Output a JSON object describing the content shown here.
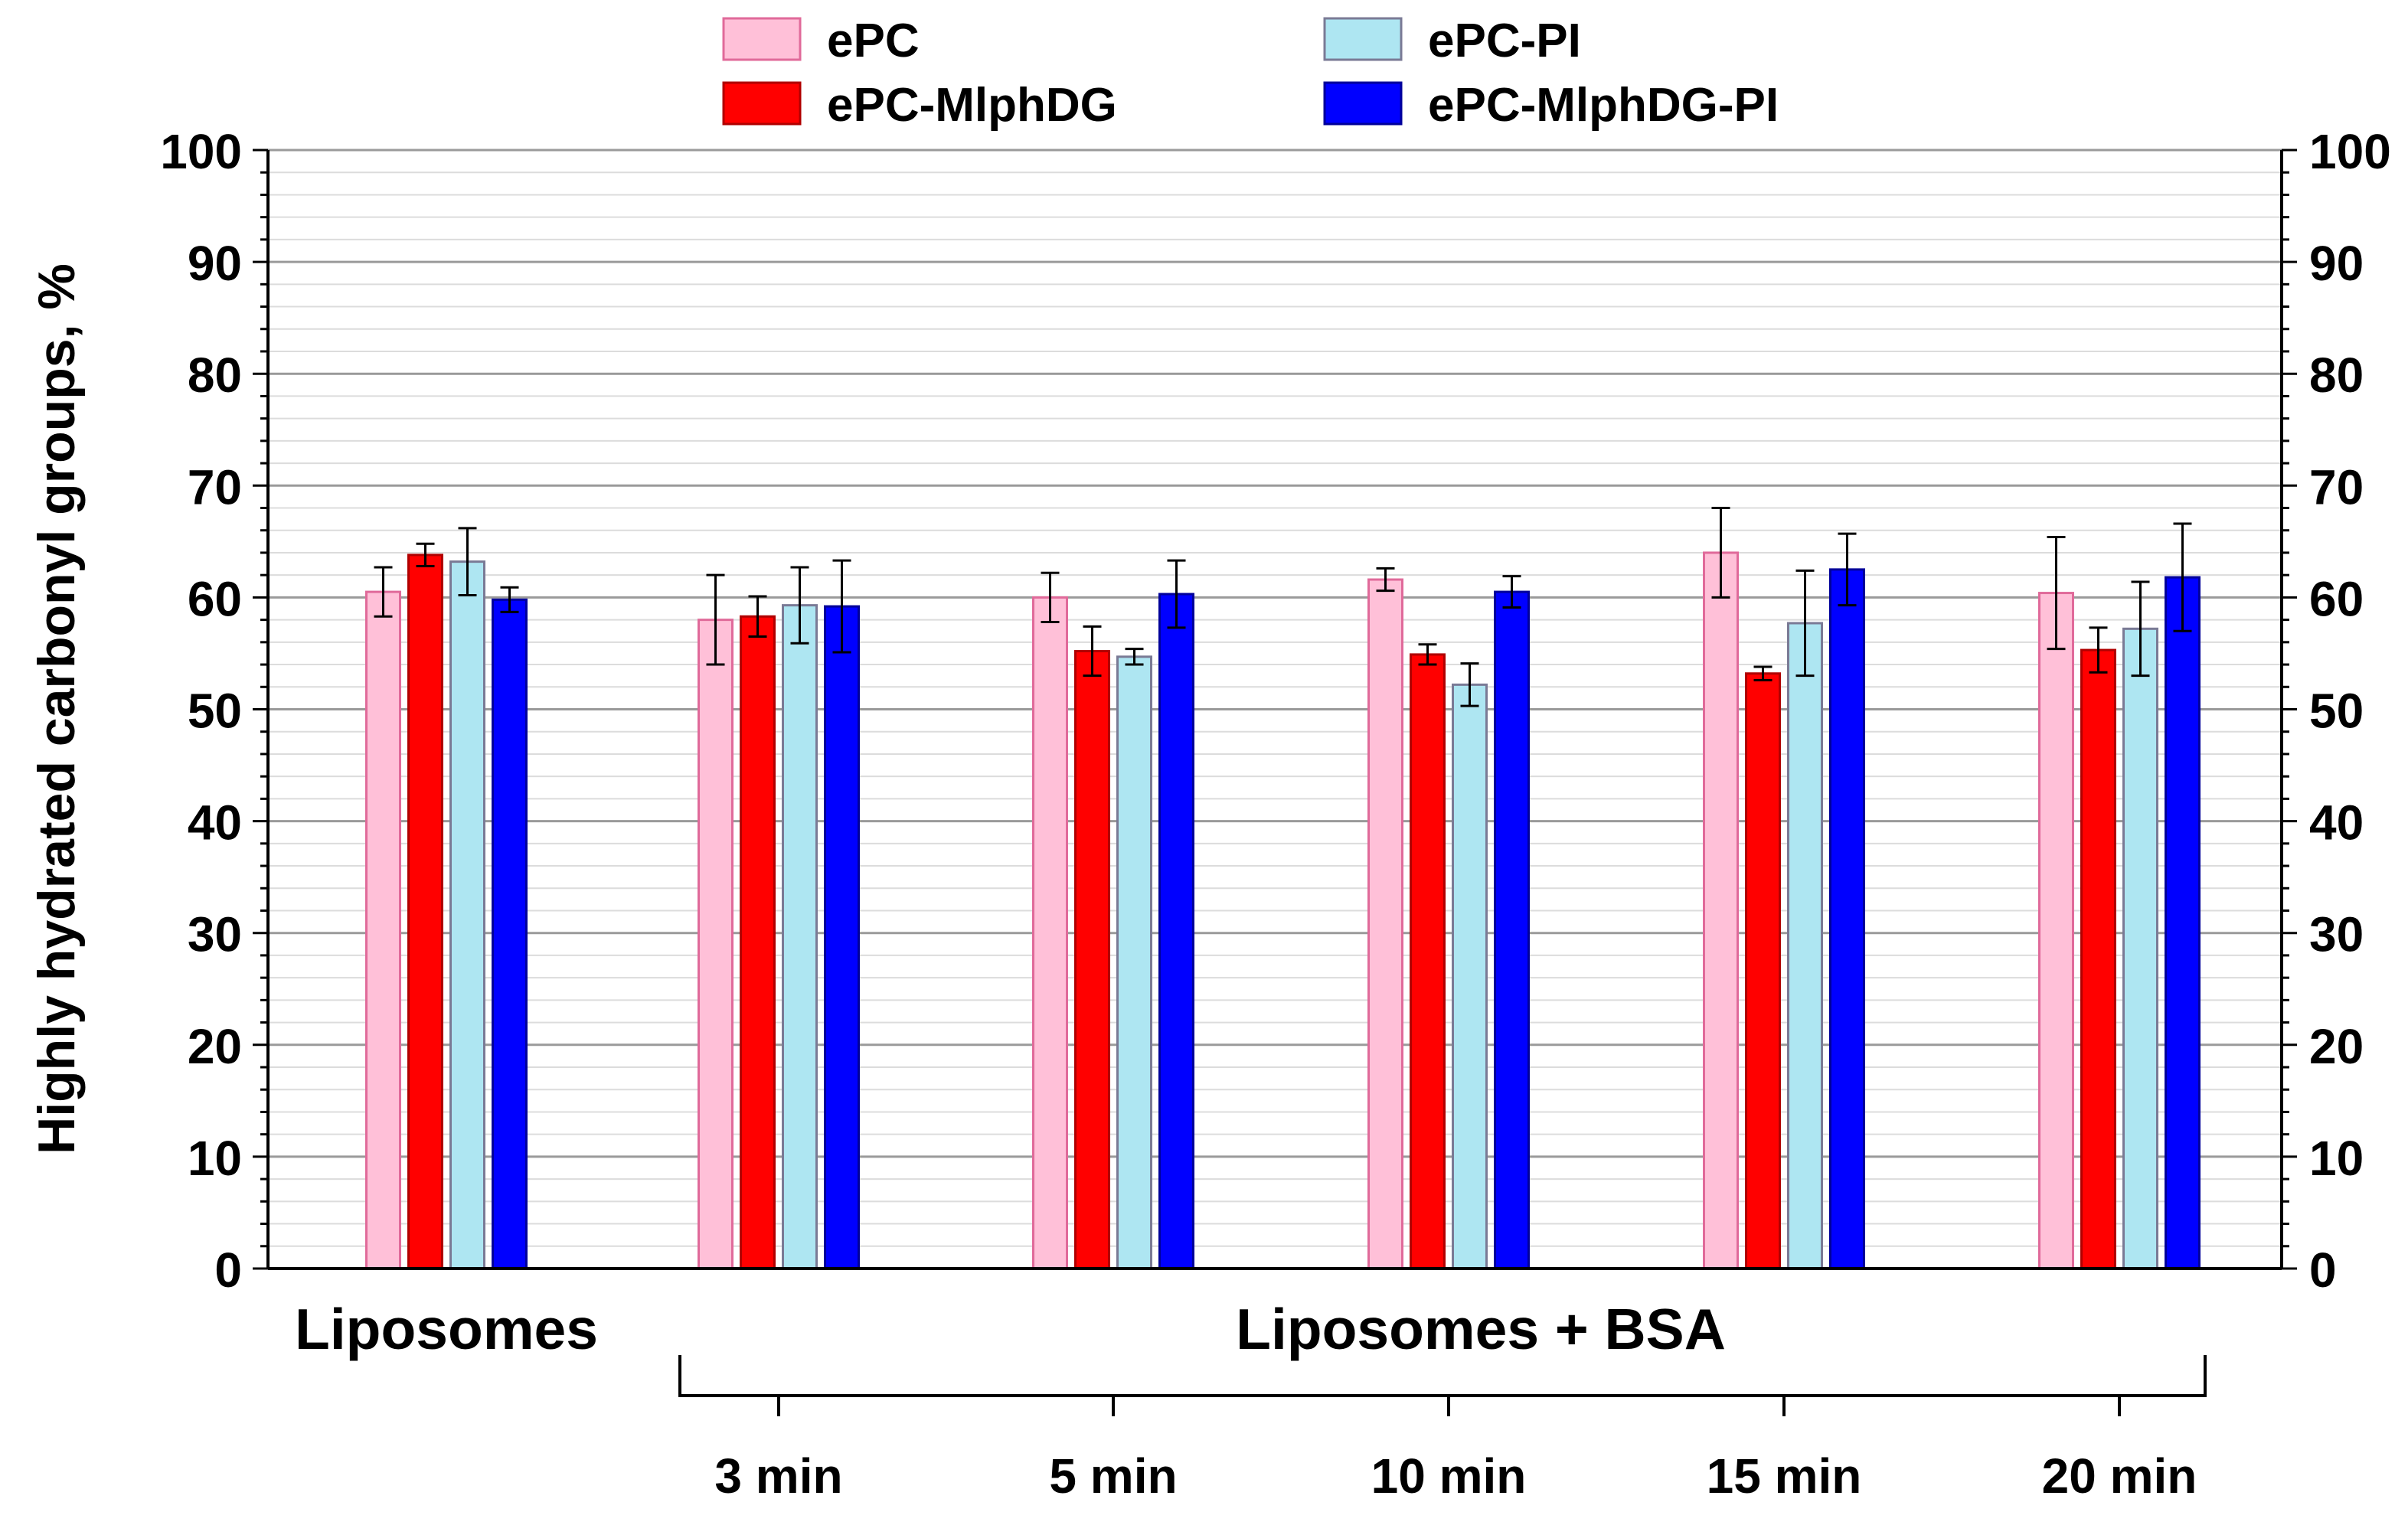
{
  "chart_data": {
    "type": "bar",
    "ylabel": "Highly hydrated carbonyl groups, %",
    "ylim": [
      0,
      100
    ],
    "yticks": [
      0,
      10,
      20,
      30,
      40,
      50,
      60,
      70,
      80,
      90,
      100
    ],
    "minor_ytick_step": 2,
    "right_axis": true,
    "grid": "major and minor horizontal lines",
    "legend_position": "top, two columns",
    "categories": [
      "Liposomes",
      "3 min",
      "5 min",
      "10 min",
      "15 min",
      "20 min"
    ],
    "group_labels": {
      "first": "Liposomes",
      "bracket": "Liposomes + BSA",
      "bracket_ticks": [
        "3 min",
        "5 min",
        "10 min",
        "15 min",
        "20 min"
      ]
    },
    "series": [
      {
        "name": "ePC",
        "color": "#FFC0D8",
        "edge": "#E06A9A",
        "values": [
          60.5,
          58.0,
          60.0,
          61.6,
          64.0,
          60.4
        ],
        "errors": [
          2.2,
          4.0,
          2.2,
          1.0,
          4.0,
          5.0
        ]
      },
      {
        "name": "ePC-MlphDG",
        "color": "#FF0000",
        "edge": "#B00000",
        "values": [
          63.8,
          58.3,
          55.2,
          54.9,
          53.2,
          55.3
        ],
        "errors": [
          1.0,
          1.8,
          2.2,
          0.9,
          0.6,
          2.0
        ]
      },
      {
        "name": "ePC-PI",
        "color": "#AEE6F2",
        "edge": "#7A7A95",
        "values": [
          63.2,
          59.3,
          54.7,
          52.2,
          57.7,
          57.2
        ],
        "errors": [
          3.0,
          3.4,
          0.7,
          1.9,
          4.7,
          4.2
        ]
      },
      {
        "name": "ePC-MlphDG-PI",
        "color": "#0000FF",
        "edge": "#00009A",
        "values": [
          59.8,
          59.2,
          60.3,
          60.5,
          62.5,
          61.8
        ],
        "errors": [
          1.1,
          4.1,
          3.0,
          1.4,
          3.2,
          4.8
        ]
      }
    ]
  }
}
